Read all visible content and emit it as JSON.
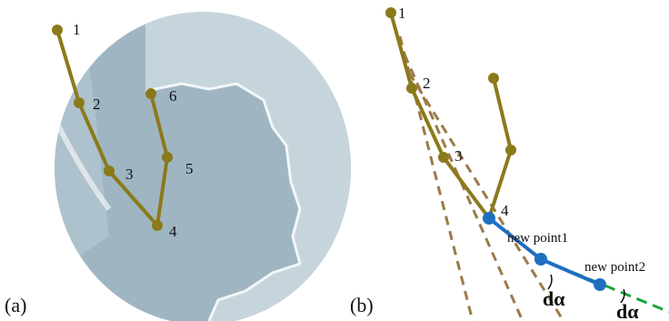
{
  "panels": [
    {
      "label": "(a)",
      "point_labels": [
        "1",
        "2",
        "3",
        "4",
        "5",
        "6"
      ]
    },
    {
      "label": "(b)",
      "point_labels": [
        "1",
        "2",
        "3",
        "4"
      ],
      "new_points": [
        "new point1",
        "new point2"
      ],
      "angle_labels": [
        "dα",
        "dα"
      ]
    }
  ]
}
